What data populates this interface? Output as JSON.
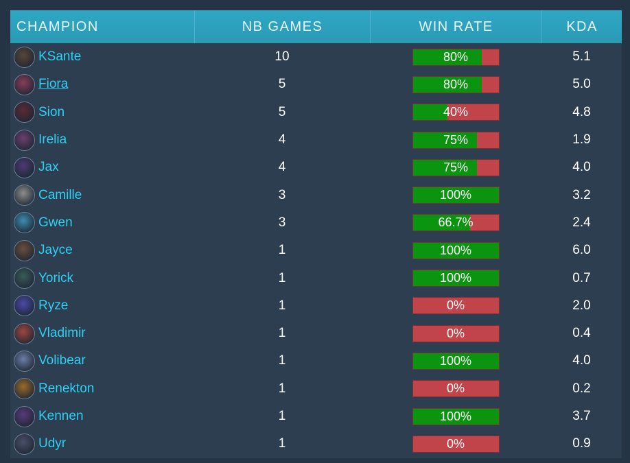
{
  "header": {
    "champion": "CHAMPION",
    "games": "NB GAMES",
    "winrate": "WIN RATE",
    "kda": "KDA"
  },
  "colors": {
    "header_bg": "#2fa7c4",
    "table_bg": "#2c3e50",
    "champion_name": "#2fd0f2",
    "win_fill": "#0b9410",
    "loss_fill": "#c0444a"
  },
  "rows": [
    {
      "name": "KSante",
      "games": "10",
      "winrate_label": "80%",
      "winrate": 0.8,
      "kda": "5.1",
      "avatar": "ksante-avatar",
      "avatar_color": "#5a4537"
    },
    {
      "name": "Fiora",
      "games": "5",
      "winrate_label": "80%",
      "winrate": 0.8,
      "kda": "5.0",
      "avatar": "fiora-avatar",
      "avatar_color": "#8a3c5a",
      "underline": true
    },
    {
      "name": "Sion",
      "games": "5",
      "winrate_label": "40%",
      "winrate": 0.4,
      "kda": "4.8",
      "avatar": "sion-avatar",
      "avatar_color": "#5b2a33"
    },
    {
      "name": "Irelia",
      "games": "4",
      "winrate_label": "75%",
      "winrate": 0.75,
      "kda": "1.9",
      "avatar": "irelia-avatar",
      "avatar_color": "#6b3f6e"
    },
    {
      "name": "Jax",
      "games": "4",
      "winrate_label": "75%",
      "winrate": 0.75,
      "kda": "4.0",
      "avatar": "jax-avatar",
      "avatar_color": "#4e3a72"
    },
    {
      "name": "Camille",
      "games": "3",
      "winrate_label": "100%",
      "winrate": 1.0,
      "kda": "3.2",
      "avatar": "camille-avatar",
      "avatar_color": "#8e8f8c"
    },
    {
      "name": "Gwen",
      "games": "3",
      "winrate_label": "66.7%",
      "winrate": 0.667,
      "kda": "2.4",
      "avatar": "gwen-avatar",
      "avatar_color": "#3e8db0"
    },
    {
      "name": "Jayce",
      "games": "1",
      "winrate_label": "100%",
      "winrate": 1.0,
      "kda": "6.0",
      "avatar": "jayce-avatar",
      "avatar_color": "#6a4e3c"
    },
    {
      "name": "Yorick",
      "games": "1",
      "winrate_label": "100%",
      "winrate": 1.0,
      "kda": "0.7",
      "avatar": "yorick-avatar",
      "avatar_color": "#3b5a5a"
    },
    {
      "name": "Ryze",
      "games": "1",
      "winrate_label": "0%",
      "winrate": 0.0,
      "kda": "2.0",
      "avatar": "ryze-avatar",
      "avatar_color": "#4a4aa8"
    },
    {
      "name": "Vladimir",
      "games": "1",
      "winrate_label": "0%",
      "winrate": 0.0,
      "kda": "0.4",
      "avatar": "vladimir-avatar",
      "avatar_color": "#a0463e"
    },
    {
      "name": "Volibear",
      "games": "1",
      "winrate_label": "100%",
      "winrate": 1.0,
      "kda": "4.0",
      "avatar": "volibear-avatar",
      "avatar_color": "#6c7fa6"
    },
    {
      "name": "Renekton",
      "games": "1",
      "winrate_label": "0%",
      "winrate": 0.0,
      "kda": "0.2",
      "avatar": "renekton-avatar",
      "avatar_color": "#9a6a2a"
    },
    {
      "name": "Kennen",
      "games": "1",
      "winrate_label": "100%",
      "winrate": 1.0,
      "kda": "3.7",
      "avatar": "kennen-avatar",
      "avatar_color": "#5a3a7a"
    },
    {
      "name": "Udyr",
      "games": "1",
      "winrate_label": "0%",
      "winrate": 0.0,
      "kda": "0.9",
      "avatar": "udyr-avatar",
      "avatar_color": "#4a5068"
    }
  ]
}
